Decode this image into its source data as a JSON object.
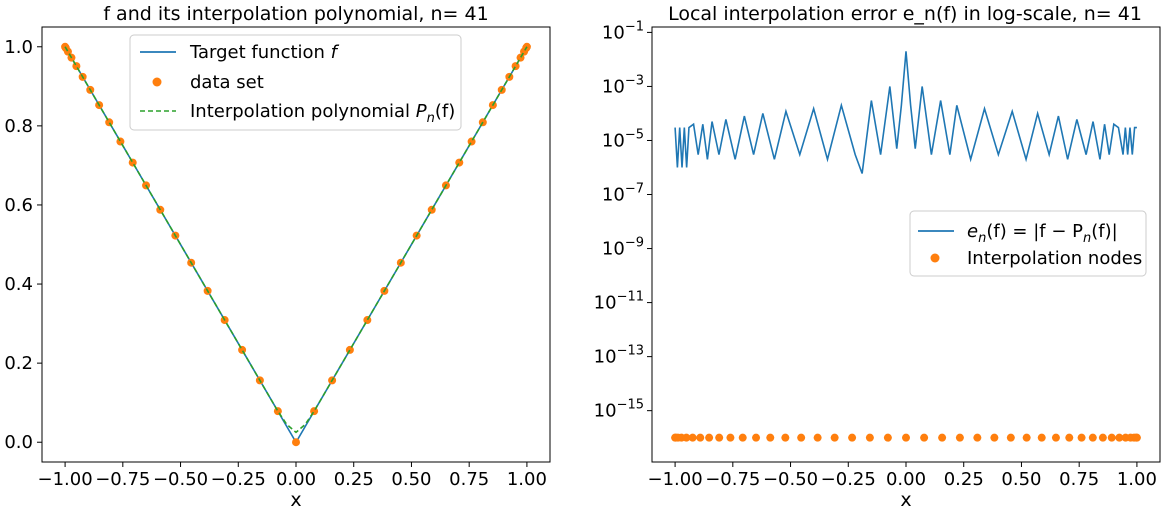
{
  "chart_data": [
    {
      "type": "line",
      "title": "f and its interpolation polynomial, n= 41",
      "xlabel": "x",
      "ylabel": "",
      "xlim": [
        -1.1,
        1.1
      ],
      "ylim": [
        -0.05,
        1.05
      ],
      "xticks": [
        -1.0,
        -0.75,
        -0.5,
        -0.25,
        0.0,
        0.25,
        0.5,
        0.75,
        1.0
      ],
      "xtick_labels": [
        "−1.00",
        "−0.75",
        "−0.50",
        "−0.25",
        "0.00",
        "0.25",
        "0.50",
        "0.75",
        "1.00"
      ],
      "yticks": [
        0.0,
        0.2,
        0.4,
        0.6,
        0.8,
        1.0
      ],
      "ytick_labels": [
        "0.0",
        "0.2",
        "0.4",
        "0.6",
        "0.8",
        "1.0"
      ],
      "grid": false,
      "legend_position": "top-center",
      "series": [
        {
          "name": "Target function f",
          "kind": "line",
          "color": "#1f77b4",
          "x": [
            -1.0,
            0.0,
            1.0
          ],
          "y": [
            1.0,
            0.0,
            1.0
          ]
        },
        {
          "name": "data set",
          "kind": "scatter",
          "color": "#ff7f0e",
          "x": [
            -1.0,
            -0.9969,
            -0.9877,
            -0.9724,
            -0.9511,
            -0.9239,
            -0.891,
            -0.8526,
            -0.809,
            -0.7604,
            -0.7071,
            -0.6494,
            -0.5878,
            -0.5225,
            -0.454,
            -0.3827,
            -0.309,
            -0.2334,
            -0.1564,
            -0.0785,
            0.0,
            0.0785,
            0.1564,
            0.2334,
            0.309,
            0.3827,
            0.454,
            0.5225,
            0.5878,
            0.6494,
            0.7071,
            0.7604,
            0.809,
            0.8526,
            0.891,
            0.9239,
            0.9511,
            0.9724,
            0.9877,
            0.9969,
            1.0
          ],
          "y": [
            1.0,
            0.9969,
            0.9877,
            0.9724,
            0.9511,
            0.9239,
            0.891,
            0.8526,
            0.809,
            0.7604,
            0.7071,
            0.6494,
            0.5878,
            0.5225,
            0.454,
            0.3827,
            0.309,
            0.2334,
            0.1564,
            0.0785,
            0.0,
            0.0785,
            0.1564,
            0.2334,
            0.309,
            0.3827,
            0.454,
            0.5225,
            0.5878,
            0.6494,
            0.7071,
            0.7604,
            0.809,
            0.8526,
            0.891,
            0.9239,
            0.9511,
            0.9724,
            0.9877,
            0.9969,
            1.0
          ]
        },
        {
          "name": "Interpolation polynomial Pn(f)",
          "kind": "line",
          "dashed": true,
          "color": "#2ca02c",
          "x": [
            -1.0,
            -0.0785,
            -0.04,
            0.0,
            0.04,
            0.0785,
            1.0
          ],
          "y": [
            1.0,
            0.0785,
            0.045,
            0.025,
            0.045,
            0.0785,
            1.0
          ]
        }
      ],
      "legend_labels": {
        "target_prefix": "Target function ",
        "target_var": "f",
        "data": "data set",
        "poly_prefix": "Interpolation polynomial ",
        "poly_P": "P",
        "poly_sub": "n",
        "poly_arg": "(f)"
      }
    },
    {
      "type": "line",
      "title": "Local interpolation error e_n(f) in log-scale, n= 41",
      "xlabel": "x",
      "ylabel": "",
      "yscale": "log",
      "xlim": [
        -1.1,
        1.1
      ],
      "ylim_log10": [
        -16.9,
        -0.8
      ],
      "xticks": [
        -1.0,
        -0.75,
        -0.5,
        -0.25,
        0.0,
        0.25,
        0.5,
        0.75,
        1.0
      ],
      "xtick_labels": [
        "−1.00",
        "−0.75",
        "−0.50",
        "−0.25",
        "0.00",
        "0.25",
        "0.50",
        "0.75",
        "1.00"
      ],
      "ytick_exponents": [
        -1,
        -3,
        -5,
        -7,
        -9,
        -11,
        -13,
        -15
      ],
      "ytick_labels": [
        "10−1",
        "10−3",
        "10−5",
        "10−7",
        "10−9",
        "10−11",
        "10−13",
        "10−15"
      ],
      "grid": false,
      "legend_position": "center-right",
      "series": [
        {
          "name": "e_n(f) = |f − P_n(f)|",
          "kind": "line",
          "color": "#1f77b4",
          "description_x": [
            -1.0,
            -0.75,
            -0.5,
            -0.25,
            -0.1,
            0.0,
            0.1,
            0.25,
            0.5,
            0.75,
            1.0
          ],
          "peak_y": [
            3e-05,
            5e-05,
            0.0001,
            0.0003,
            0.002,
            0.02,
            0.002,
            0.0003,
            0.0001,
            5e-05,
            3e-05
          ],
          "x": [
            -1.0,
            -0.99,
            -0.98,
            -0.97,
            -0.96,
            -0.95,
            -0.94,
            -0.92,
            -0.9,
            -0.88,
            -0.86,
            -0.84,
            -0.81,
            -0.78,
            -0.74,
            -0.7,
            -0.66,
            -0.62,
            -0.57,
            -0.52,
            -0.46,
            -0.4,
            -0.34,
            -0.28,
            -0.22,
            -0.19,
            -0.15,
            -0.11,
            -0.07,
            -0.04,
            -0.02,
            0.0,
            0.02,
            0.04,
            0.07,
            0.11,
            0.15,
            0.19,
            0.22,
            0.28,
            0.34,
            0.4,
            0.46,
            0.52,
            0.57,
            0.62,
            0.66,
            0.7,
            0.74,
            0.78,
            0.81,
            0.84,
            0.86,
            0.88,
            0.9,
            0.92,
            0.94,
            0.95,
            0.96,
            0.97,
            0.98,
            0.99,
            1.0
          ],
          "y": [
            3e-05,
            1e-06,
            3e-05,
            1e-06,
            3e-05,
            1e-06,
            3e-05,
            4e-05,
            3e-06,
            4e-05,
            2e-06,
            5e-05,
            3e-06,
            6e-05,
            2e-06,
            8e-05,
            3e-06,
            0.0001,
            2e-06,
            0.00012,
            3e-06,
            0.00015,
            2e-06,
            0.0002,
            3e-06,
            6e-07,
            0.0003,
            3e-06,
            0.001,
            5e-06,
            0.0002,
            0.02,
            0.0002,
            5e-06,
            0.001,
            3e-06,
            0.0003,
            3e-06,
            0.0002,
            2e-06,
            0.00015,
            3e-06,
            0.00012,
            2e-06,
            0.0001,
            3e-06,
            8e-05,
            2e-06,
            6e-05,
            3e-06,
            5e-05,
            2e-06,
            4e-05,
            3e-06,
            4e-05,
            3e-05,
            3e-06,
            3e-05,
            3e-06,
            3e-05,
            3e-06,
            3e-05,
            3e-05
          ]
        },
        {
          "name": "Interpolation nodes",
          "kind": "scatter",
          "color": "#ff7f0e",
          "x": [
            -1.0,
            -0.9969,
            -0.9877,
            -0.9724,
            -0.9511,
            -0.9239,
            -0.891,
            -0.8526,
            -0.809,
            -0.7604,
            -0.7071,
            -0.6494,
            -0.5878,
            -0.5225,
            -0.454,
            -0.3827,
            -0.309,
            -0.2334,
            -0.1564,
            -0.0785,
            0.0,
            0.0785,
            0.1564,
            0.2334,
            0.309,
            0.3827,
            0.454,
            0.5225,
            0.5878,
            0.6494,
            0.7071,
            0.7604,
            0.809,
            0.8526,
            0.891,
            0.9239,
            0.9511,
            0.9724,
            0.9877,
            0.9969,
            1.0
          ],
          "y": [
            1e-16,
            1e-16,
            1e-16,
            1e-16,
            1e-16,
            1e-16,
            1e-16,
            1e-16,
            1e-16,
            1e-16,
            1e-16,
            1e-16,
            1e-16,
            1e-16,
            1e-16,
            1e-16,
            1e-16,
            1e-16,
            1e-16,
            1e-16,
            1e-16,
            1e-16,
            1e-16,
            1e-16,
            1e-16,
            1e-16,
            1e-16,
            1e-16,
            1e-16,
            1e-16,
            1e-16,
            1e-16,
            1e-16,
            1e-16,
            1e-16,
            1e-16,
            1e-16,
            1e-16,
            1e-16,
            1e-16,
            1e-16
          ]
        }
      ],
      "legend_labels": {
        "err_e": "e",
        "err_sub": "n",
        "err_rest": "(f) = |f − P",
        "err_sub2": "n",
        "err_end": "(f)|",
        "nodes": "Interpolation nodes"
      }
    }
  ]
}
